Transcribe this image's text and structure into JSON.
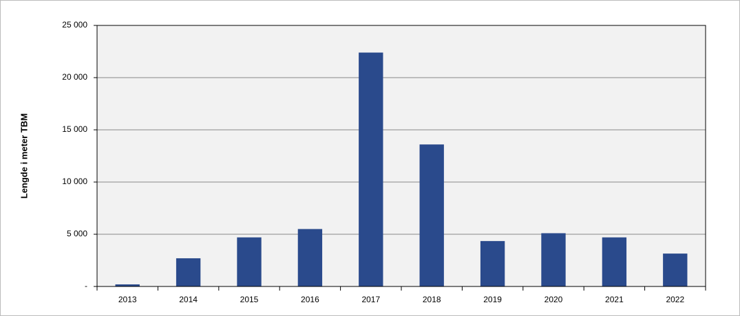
{
  "chart_data": {
    "type": "bar",
    "y_label": "Lengde i meter TBM",
    "categories": [
      "2013",
      "2014",
      "2015",
      "2016",
      "2017",
      "2018",
      "2019",
      "2020",
      "2021",
      "2022"
    ],
    "values": [
      200,
      2700,
      4700,
      5500,
      22400,
      13600,
      4350,
      5100,
      4700,
      3150
    ],
    "color": "#2a4a8c",
    "ylim": [
      0,
      25000
    ],
    "yticks": [
      {
        "value": 0,
        "label": "-"
      },
      {
        "value": 5000,
        "label": "5 000"
      },
      {
        "value": 10000,
        "label": "10 000"
      },
      {
        "value": 15000,
        "label": "15 000"
      },
      {
        "value": 20000,
        "label": "20 000"
      },
      {
        "value": 25000,
        "label": "25 000"
      }
    ],
    "grid": true
  }
}
